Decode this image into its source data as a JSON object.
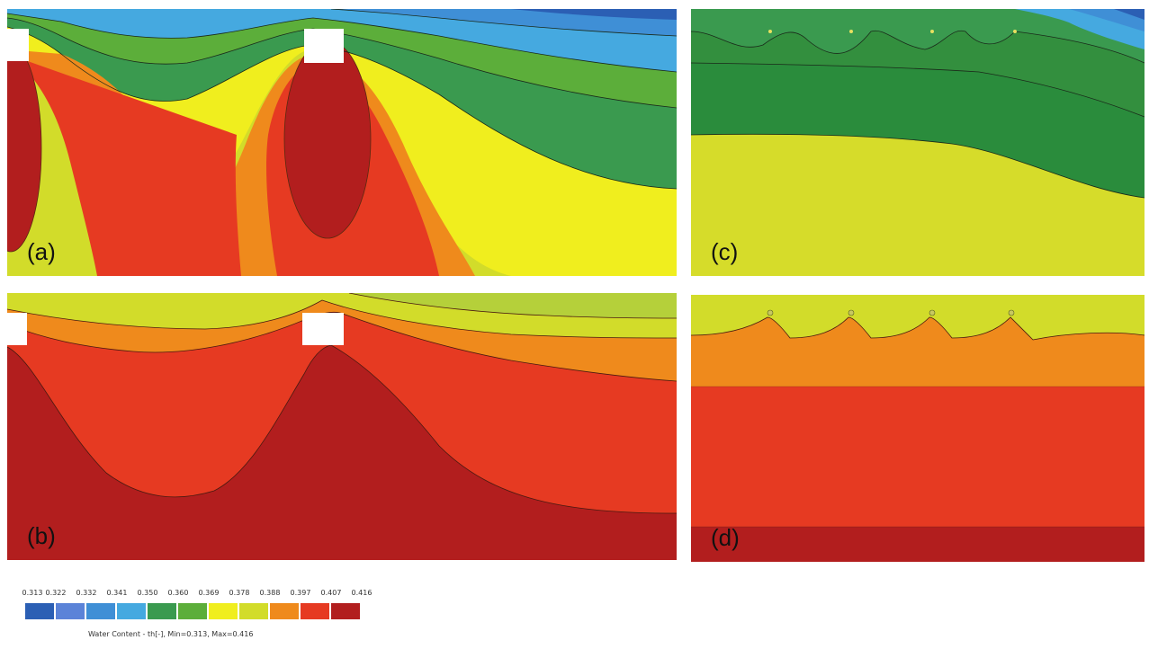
{
  "panels": {
    "a": {
      "label": "(a)"
    },
    "b": {
      "label": "(b)"
    },
    "c": {
      "label": "(c)"
    },
    "d": {
      "label": "(d)"
    }
  },
  "legend": {
    "ticks": [
      "0.313",
      "0.322",
      "0.332",
      "0.341",
      "0.350",
      "0.360",
      "0.369",
      "0.378",
      "0.388",
      "0.397",
      "0.407",
      "0.416"
    ],
    "colors": [
      "#2b5fb4",
      "#5b83d8",
      "#3f8fd6",
      "#45a9e0",
      "#3a9a4f",
      "#5cae3a",
      "#f0ee1e",
      "#d2dc2a",
      "#ef8a1c",
      "#e63a22",
      "#b21e1e"
    ],
    "caption": "Water Content - th[-], Min=0.313, Max=0.416"
  }
}
